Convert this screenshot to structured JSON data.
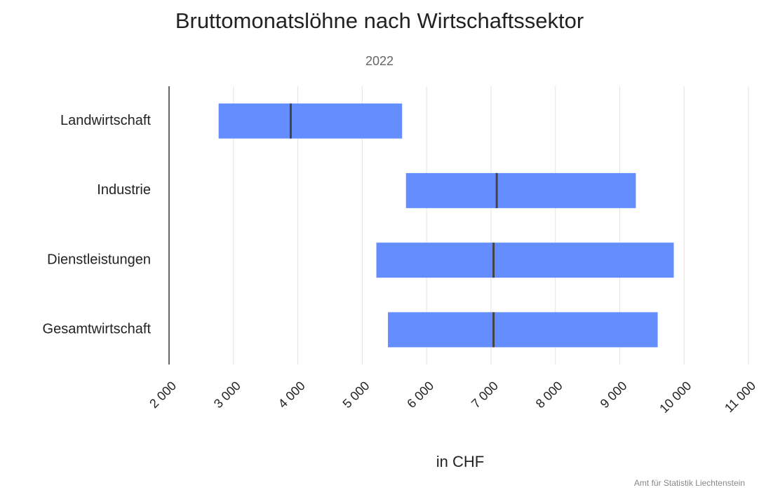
{
  "chart_data": {
    "type": "range_bar",
    "title": "Bruttomonatslöhne nach Wirtschaftssektor",
    "subtitle": "2022",
    "x_label": "in CHF",
    "source": "Amt für Statistik Liechtenstein",
    "categories": [
      "Landwirtschaft",
      "Industrie",
      "Dienstleistungen",
      "Gesamtwirtschaft"
    ],
    "low": [
      2770,
      5680,
      5220,
      5400
    ],
    "median": [
      3890,
      7090,
      7040,
      7040
    ],
    "high": [
      5620,
      9250,
      9840,
      9590
    ],
    "color": "#648dff",
    "median_color": "#444444",
    "xlim": [
      2000,
      11000
    ],
    "xticks": [
      {
        "value": 2000,
        "label": "2 000"
      },
      {
        "value": 3000,
        "label": "3 000"
      },
      {
        "value": 4000,
        "label": "4 000"
      },
      {
        "value": 5000,
        "label": "5 000"
      },
      {
        "value": 6000,
        "label": "6 000"
      },
      {
        "value": 7000,
        "label": "7 000"
      },
      {
        "value": 8000,
        "label": "8 000"
      },
      {
        "value": 9000,
        "label": "9 000"
      },
      {
        "value": 10000,
        "label": "10 000"
      },
      {
        "value": 11000,
        "label": "11 000"
      }
    ],
    "grid": true
  }
}
